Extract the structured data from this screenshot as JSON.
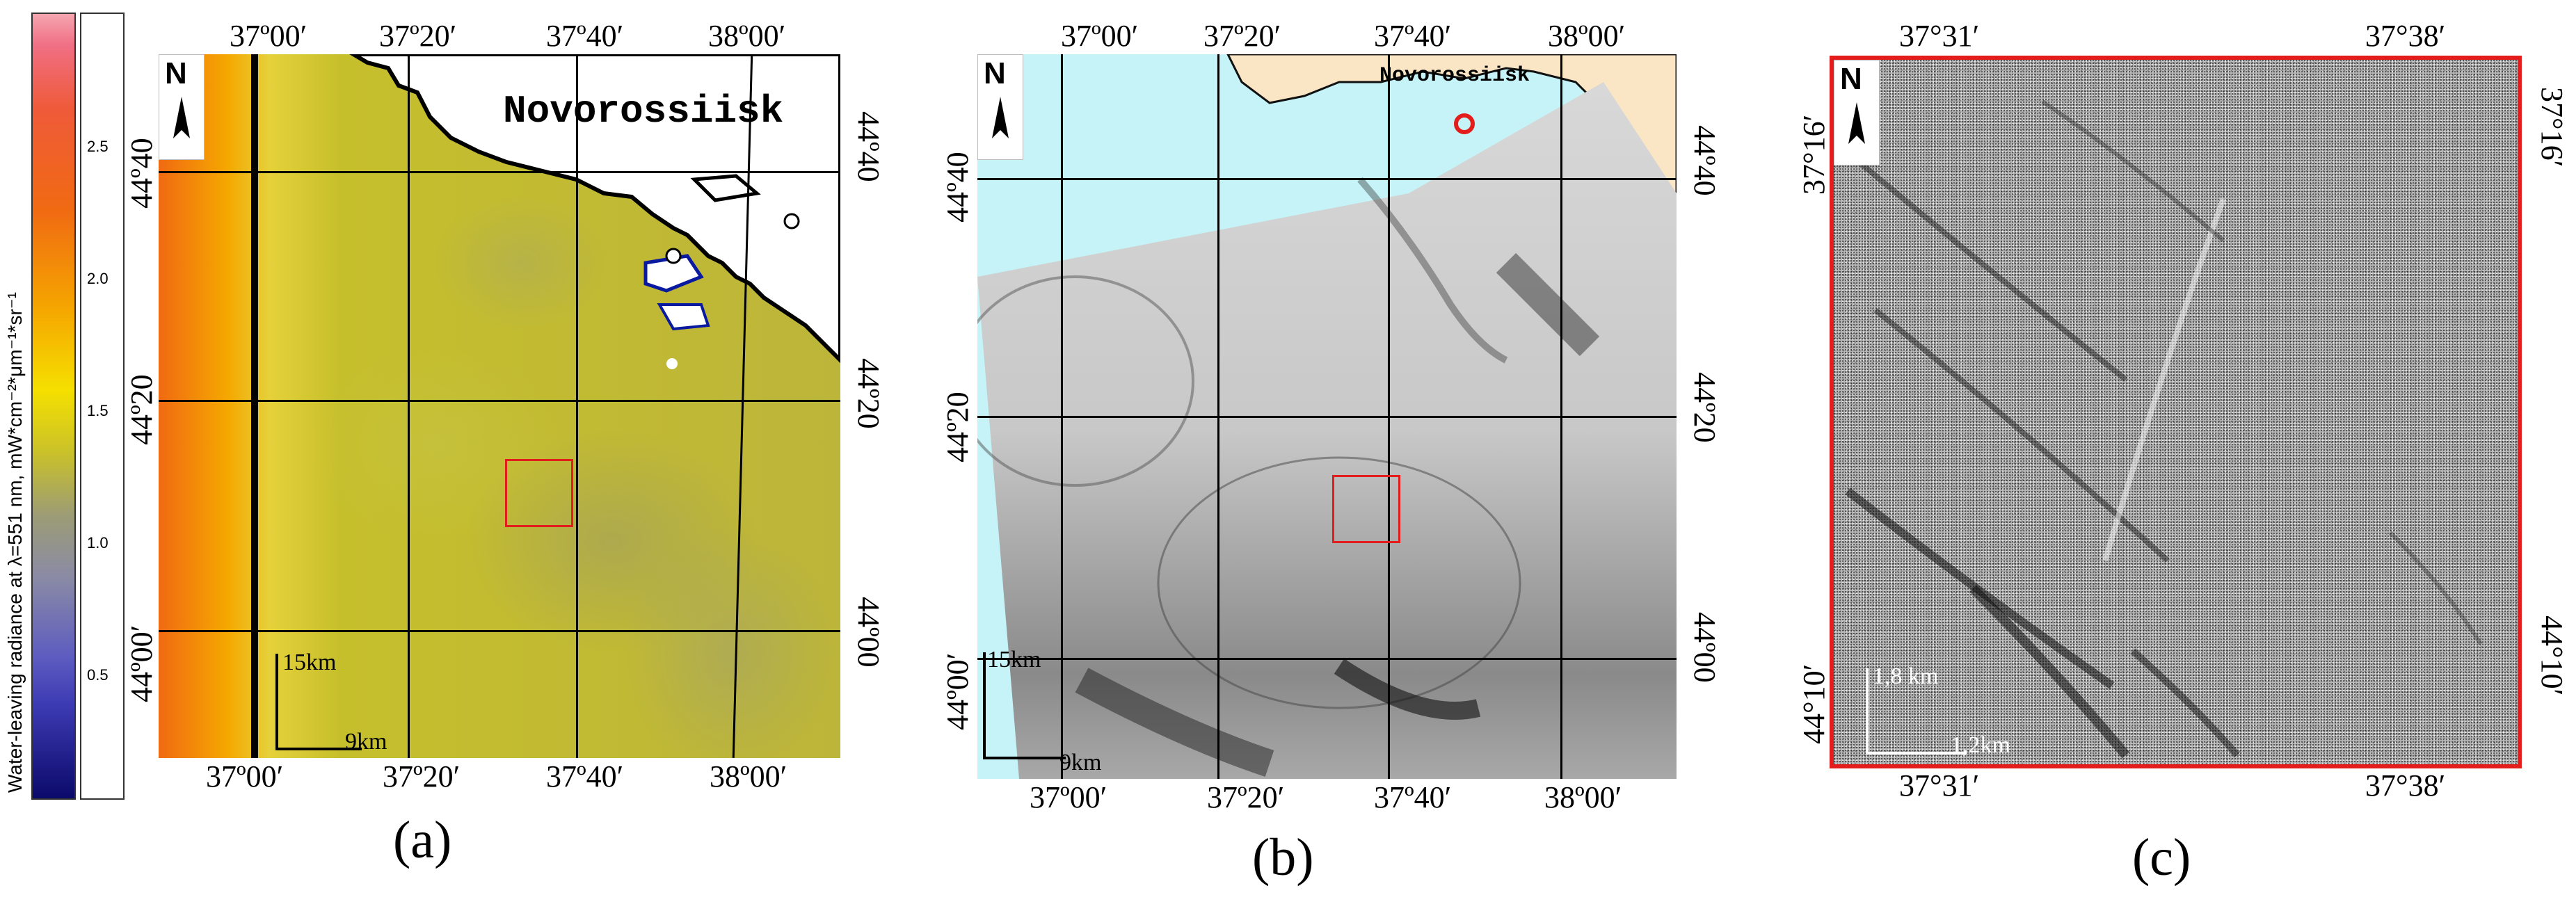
{
  "colorbar": {
    "label": "Water-leaving radiance at λ=551 nm, mW*cm⁻²*μm⁻¹*sr⁻¹",
    "ticks": [
      "2.5",
      "2.0",
      "1.5",
      "1.0",
      "0.5"
    ],
    "colors": [
      "#f06f84",
      "#f06a12",
      "#f5e000",
      "#909090",
      "#3d3bb3",
      "#0b0a6a"
    ]
  },
  "panel_a": {
    "caption": "(a)",
    "city": "Novorossiisk",
    "top_lon": [
      "37º00′",
      "37º20′",
      "37º40′",
      "38º00′"
    ],
    "bottom_lon": [
      "37º00′",
      "37º20′",
      "37º40′",
      "38º00′"
    ],
    "left_lat": [
      "44º40",
      "44º20",
      "44º00′"
    ],
    "right_lat": [
      "44º40",
      "44º20",
      "44º00"
    ],
    "north": "N",
    "scale_v": "15km",
    "scale_h": "9km"
  },
  "panel_b": {
    "caption": "(b)",
    "city": "Novorossiisk",
    "top_lon": [
      "37º00′",
      "37º20′",
      "37º40′",
      "38º00′"
    ],
    "bottom_lon": [
      "37º00′",
      "37º20′",
      "37º40′",
      "38º00′"
    ],
    "left_lat": [
      "44º40",
      "44º20",
      "44º00′"
    ],
    "right_lat": [
      "44º40",
      "44º20",
      "44º00"
    ],
    "north": "N",
    "scale_v": "15km",
    "scale_h": "9km"
  },
  "panel_c": {
    "caption": "(c)",
    "top_lon": [
      "37°31′",
      "37°38′"
    ],
    "bottom_lon": [
      "37°31′",
      "37°38′"
    ],
    "left_lat": [
      "37°16′",
      "44°10′"
    ],
    "right_lat": [
      "37°16′",
      "44°10′"
    ],
    "north": "N",
    "scale_v": "1,8 km",
    "scale_h": "1,2km"
  }
}
